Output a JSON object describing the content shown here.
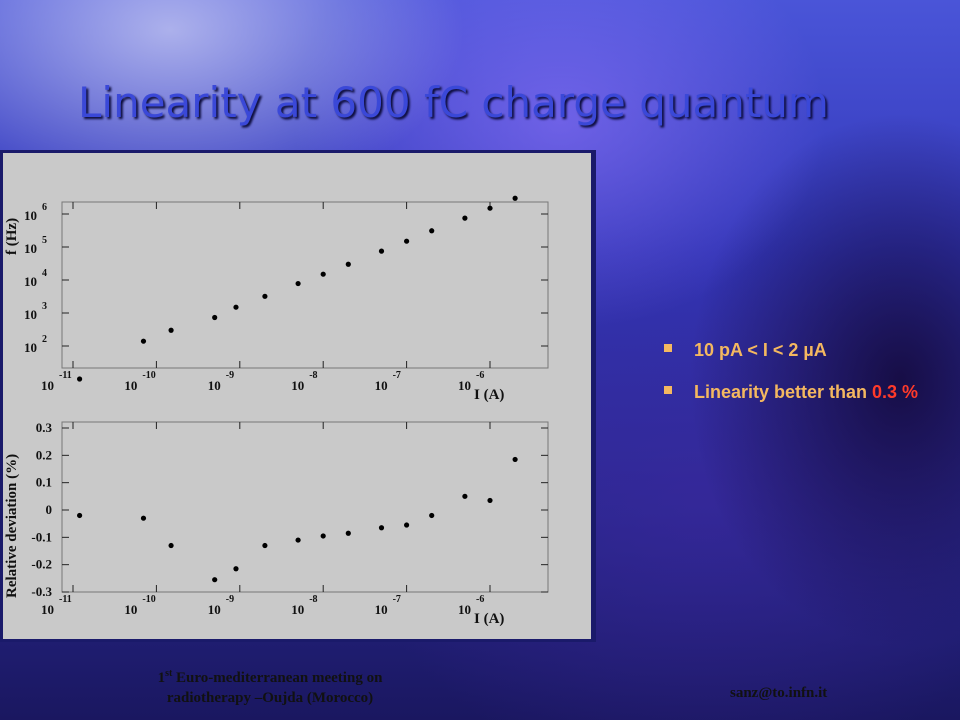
{
  "slide": {
    "title": "Linearity at 600 fC charge quantum",
    "bullets": [
      {
        "text": "10 pA < I < 2 µA",
        "highlight": ""
      },
      {
        "text": "Linearity better than ",
        "highlight": "0.3 %"
      }
    ],
    "footer_left": {
      "sup_prefix": "1",
      "sup": "st",
      "line1_rest": " Euro-mediterranean meeting on",
      "line2": "radiotherapy –Oujda (Morocco)"
    },
    "footer_right": "sanz@to.infn.it",
    "colors": {
      "bullet_text": "#f4b860",
      "highlight": "#ff3a2a",
      "title": "#3a48d8"
    }
  },
  "chart_data": [
    {
      "type": "scatter",
      "title": "",
      "xlabel": "I (A)",
      "ylabel": "f (Hz)",
      "x_scale": "log",
      "y_scale": "log",
      "x_tick_base": "10",
      "x_tick_exponents": [
        "-11",
        "-10",
        "-9",
        "-8",
        "-7",
        "-6"
      ],
      "y_tick_base": "10",
      "y_tick_exponents": [
        "2",
        "3",
        "4",
        "5",
        "6"
      ],
      "series": [
        {
          "x": [
            1.2e-11,
            7e-11,
            1.5e-10,
            5e-10,
            9e-10,
            2e-09,
            5e-09,
            1e-08,
            2e-08,
            5e-08,
            1e-07,
            2e-07,
            5e-07,
            1e-06,
            2e-06
          ],
          "y": [
            10,
            140,
            300,
            730,
            1500,
            3200,
            7800,
            15000,
            30000,
            75000,
            150000,
            310000,
            750000,
            1500000,
            3000000
          ]
        }
      ]
    },
    {
      "type": "scatter",
      "title": "",
      "xlabel": "I (A)",
      "ylabel": "Relative deviation (%)",
      "x_scale": "log",
      "x_tick_base": "10",
      "x_tick_exponents": [
        "-11",
        "-10",
        "-9",
        "-8",
        "-7",
        "-6"
      ],
      "y_ticks": [
        "0.3",
        "0.2",
        "0.1",
        "0",
        "-0.1",
        "-0.2",
        "-0.3"
      ],
      "ylim": [
        -0.3,
        0.3
      ],
      "series": [
        {
          "x": [
            1.2e-11,
            7e-11,
            1.5e-10,
            5e-10,
            9e-10,
            2e-09,
            5e-09,
            1e-08,
            2e-08,
            5e-08,
            1e-07,
            2e-07,
            5e-07,
            1e-06,
            2e-06
          ],
          "y": [
            -0.02,
            -0.03,
            -0.13,
            -0.255,
            -0.215,
            -0.13,
            -0.11,
            -0.095,
            -0.085,
            -0.065,
            -0.055,
            -0.02,
            0.05,
            0.035,
            0.185
          ]
        }
      ]
    }
  ]
}
